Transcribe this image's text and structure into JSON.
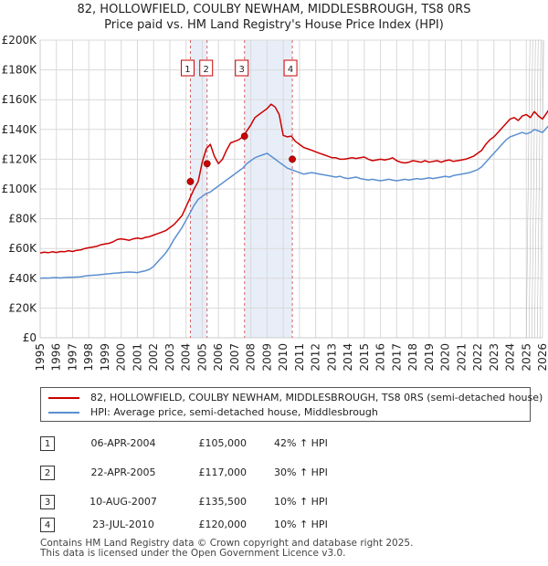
{
  "title_line1": "82, HOLLOWFIELD, COULBY NEWHAM, MIDDLESBROUGH, TS8 0RS",
  "title_line2": "Price paid vs. HM Land Registry's House Price Index (HPI)",
  "colors": {
    "property": "#cc0000",
    "hpi": "#5b8fd0",
    "grid": "#d9d9d9",
    "shade": "#e8eef8"
  },
  "chart_data": {
    "type": "line",
    "x_start": 1995,
    "x_end": 2026,
    "x_step": 0.25,
    "ylim": [
      0,
      200000
    ],
    "y_ticks": [
      {
        "value": 0,
        "label": "£0"
      },
      {
        "value": 20000,
        "label": "£20K"
      },
      {
        "value": 40000,
        "label": "£40K"
      },
      {
        "value": 60000,
        "label": "£60K"
      },
      {
        "value": 80000,
        "label": "£80K"
      },
      {
        "value": 100000,
        "label": "£100K"
      },
      {
        "value": 120000,
        "label": "£120K"
      },
      {
        "value": 140000,
        "label": "£140K"
      },
      {
        "value": 160000,
        "label": "£160K"
      },
      {
        "value": 180000,
        "label": "£180K"
      },
      {
        "value": 200000,
        "label": "£200K"
      }
    ],
    "x_ticks": [
      "1995",
      "1996",
      "1997",
      "1998",
      "1999",
      "2000",
      "2001",
      "2002",
      "2003",
      "2004",
      "2005",
      "2006",
      "2007",
      "2008",
      "2009",
      "2010",
      "2011",
      "2012",
      "2013",
      "2014",
      "2015",
      "2016",
      "2017",
      "2018",
      "2019",
      "2020",
      "2021",
      "2022",
      "2023",
      "2024",
      "2025",
      "2026"
    ],
    "hatch_from": 2025.0,
    "series": [
      {
        "name": "82, HOLLOWFIELD, COULBY NEWHAM, MIDDLESBROUGH, TS8 0RS (semi-detached house)",
        "color": "#cc0000",
        "values": [
          57000,
          57500,
          57200,
          57800,
          57300,
          58000,
          57800,
          58500,
          58000,
          58800,
          59000,
          60000,
          60500,
          61000,
          61500,
          62500,
          63000,
          63500,
          64500,
          66000,
          66500,
          66000,
          65500,
          66500,
          67000,
          66500,
          67500,
          68000,
          69000,
          70000,
          71000,
          72000,
          74000,
          76000,
          79000,
          82000,
          88000,
          94000,
          100000,
          105000,
          118000,
          127000,
          130000,
          122000,
          117000,
          120000,
          126000,
          131000,
          132000,
          133000,
          135000,
          139000,
          143000,
          148000,
          150000,
          152000,
          154000,
          157000,
          155000,
          150000,
          136000,
          135000,
          135500,
          132000,
          130000,
          128000,
          127000,
          126000,
          125000,
          124000,
          123000,
          122000,
          121000,
          121000,
          120000,
          120000,
          120500,
          121000,
          120500,
          121000,
          121500,
          120000,
          119000,
          119500,
          120000,
          119500,
          120000,
          121000,
          119000,
          118000,
          117500,
          118000,
          119000,
          118500,
          118000,
          119000,
          118000,
          118500,
          119000,
          118000,
          119000,
          119500,
          118500,
          119000,
          119500,
          120000,
          121000,
          122000,
          124000,
          126000,
          130000,
          133000,
          135000,
          138000,
          141000,
          144000,
          147000,
          148000,
          146000,
          149000,
          150000,
          148000,
          152000,
          149000,
          147000,
          151000,
          155000,
          160000,
          168000,
          176000
        ],
        "sales": [
          {
            "label": "1",
            "x": 2004.27,
            "y": 105000
          },
          {
            "label": "2",
            "x": 2005.3,
            "y": 117000
          },
          {
            "label": "3",
            "x": 2007.61,
            "y": 135500
          },
          {
            "label": "4",
            "x": 2010.56,
            "y": 120000
          }
        ]
      },
      {
        "name": "HPI: Average price, semi-detached house, Middlesbrough",
        "color": "#5b8fd0",
        "values": [
          40000,
          40200,
          40100,
          40300,
          40400,
          40200,
          40500,
          40600,
          40700,
          40800,
          41000,
          41500,
          41800,
          42000,
          42200,
          42500,
          42800,
          43000,
          43300,
          43500,
          43800,
          44000,
          44200,
          44000,
          43800,
          44500,
          45000,
          46000,
          48000,
          51000,
          54000,
          57000,
          61000,
          66000,
          70000,
          74000,
          79000,
          84000,
          89000,
          93000,
          95000,
          97000,
          98000,
          100000,
          102000,
          104000,
          106000,
          108000,
          110000,
          112000,
          114000,
          117000,
          119000,
          121000,
          122000,
          123000,
          124000,
          122000,
          120000,
          118000,
          116000,
          114000,
          113000,
          112000,
          111000,
          110000,
          110500,
          111000,
          110500,
          110000,
          109500,
          109000,
          108500,
          108000,
          108500,
          107500,
          107000,
          107500,
          108000,
          107000,
          106500,
          106000,
          106500,
          106000,
          105500,
          106000,
          106500,
          106000,
          105500,
          106000,
          106500,
          106000,
          106500,
          107000,
          106500,
          107000,
          107500,
          107000,
          107500,
          108000,
          108500,
          108000,
          109000,
          109500,
          110000,
          110500,
          111000,
          112000,
          113000,
          115000,
          118000,
          121000,
          124000,
          127000,
          130000,
          133000,
          135000,
          136000,
          137000,
          138000,
          137000,
          138000,
          140000,
          139000,
          138000,
          141000,
          144000,
          148000,
          153000,
          160000
        ]
      }
    ]
  },
  "legend": {
    "property_label": "82, HOLLOWFIELD, COULBY NEWHAM, MIDDLESBROUGH, TS8 0RS (semi-detached house)",
    "hpi_label": "HPI: Average price, semi-detached house, Middlesbrough"
  },
  "sales_table": [
    {
      "num": "1",
      "date": "06-APR-2004",
      "price": "£105,000",
      "hpi": "42% ↑ HPI"
    },
    {
      "num": "2",
      "date": "22-APR-2005",
      "price": "£117,000",
      "hpi": "30% ↑ HPI"
    },
    {
      "num": "3",
      "date": "10-AUG-2007",
      "price": "£135,500",
      "hpi": "10% ↑ HPI"
    },
    {
      "num": "4",
      "date": "23-JUL-2010",
      "price": "£120,000",
      "hpi": "10% ↑ HPI"
    }
  ],
  "footer_line1": "Contains HM Land Registry data © Crown copyright and database right 2025.",
  "footer_line2": "This data is licensed under the Open Government Licence v3.0."
}
